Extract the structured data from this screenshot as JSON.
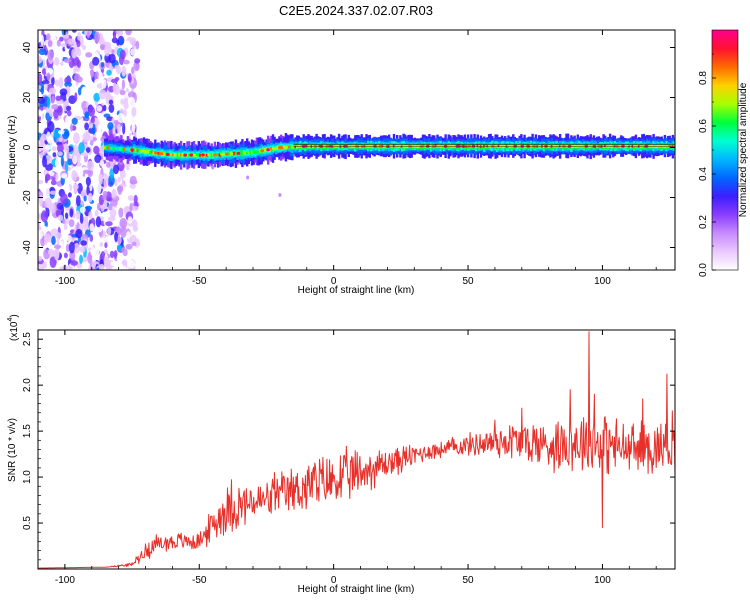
{
  "title": "C2E5.2024.337.02.07.R03",
  "colors": {
    "snr_line": "#e8302a",
    "colormap": [
      "#ffffff",
      "#e9c8ff",
      "#c78bff",
      "#8a3dff",
      "#3b1fff",
      "#0068ff",
      "#00b8ff",
      "#00ffd0",
      "#00ff3a",
      "#a8ff00",
      "#ffd000",
      "#ff6a00",
      "#ff1030",
      "#ff0090"
    ]
  },
  "chart_data": [
    {
      "type": "heatmap",
      "title": "C2E5.2024.337.02.07.R03",
      "xlabel": "Height of straight line (km)",
      "ylabel": "Frequency (Hz)",
      "xlim": [
        -110,
        127
      ],
      "ylim": [
        -49,
        47
      ],
      "xticks": [
        -100,
        -50,
        0,
        50,
        100
      ],
      "yticks": [
        -40,
        -20,
        0,
        20,
        40
      ],
      "colorbar": {
        "label": "Normalized spectral amplitude",
        "range": [
          0,
          1
        ],
        "ticks": [
          "0.0",
          "0.2",
          "0.4",
          "0.6",
          "0.8"
        ]
      },
      "features": {
        "noise_region_x": [
          -110,
          -75
        ],
        "signal_band_x": [
          -85,
          127
        ],
        "signal_center_hz": 0.5,
        "signal_drift": [
          [
            -85,
            0
          ],
          [
            -75,
            -1
          ],
          [
            -60,
            -3
          ],
          [
            -45,
            -3
          ],
          [
            -30,
            -2
          ],
          [
            -20,
            0
          ],
          [
            -10,
            0.5
          ],
          [
            127,
            0.5
          ]
        ],
        "peak_line_x": [
          -15,
          127
        ]
      }
    },
    {
      "type": "line",
      "xlabel": "Height of straight line (km)",
      "ylabel": "SNR (10 * v/v)",
      "scale_label": "(x10",
      "scale_exp": "4",
      "scale_close": ")",
      "xlim": [
        -110,
        127
      ],
      "ylim": [
        0,
        2.6
      ],
      "xticks": [
        -100,
        -50,
        0,
        50,
        100
      ],
      "yticks": [
        "0.5",
        "1.0",
        "1.5",
        "2.0",
        "2.5"
      ],
      "envelope": [
        [
          -110,
          0.01,
          0.0
        ],
        [
          -85,
          0.02,
          0.0
        ],
        [
          -75,
          0.05,
          0.02
        ],
        [
          -68,
          0.25,
          0.12
        ],
        [
          -60,
          0.3,
          0.1
        ],
        [
          -50,
          0.3,
          0.1
        ],
        [
          -40,
          0.65,
          0.28
        ],
        [
          -25,
          0.75,
          0.2
        ],
        [
          -10,
          0.9,
          0.3
        ],
        [
          5,
          1.0,
          0.3
        ],
        [
          20,
          1.15,
          0.18
        ],
        [
          35,
          1.28,
          0.1
        ],
        [
          50,
          1.35,
          0.12
        ],
        [
          65,
          1.4,
          0.22
        ],
        [
          80,
          1.35,
          0.28
        ],
        [
          95,
          1.4,
          0.35
        ],
        [
          110,
          1.3,
          0.3
        ],
        [
          127,
          1.35,
          0.3
        ]
      ],
      "spikes": [
        [
          -38,
          0.97
        ],
        [
          -22,
          1.05
        ],
        [
          40,
          1.38
        ],
        [
          60,
          1.62
        ],
        [
          70,
          1.75
        ],
        [
          88,
          1.95
        ],
        [
          95,
          2.58
        ],
        [
          97,
          1.9
        ],
        [
          100,
          0.45
        ],
        [
          115,
          1.85
        ],
        [
          124,
          2.12
        ],
        [
          126,
          1.72
        ]
      ]
    }
  ]
}
